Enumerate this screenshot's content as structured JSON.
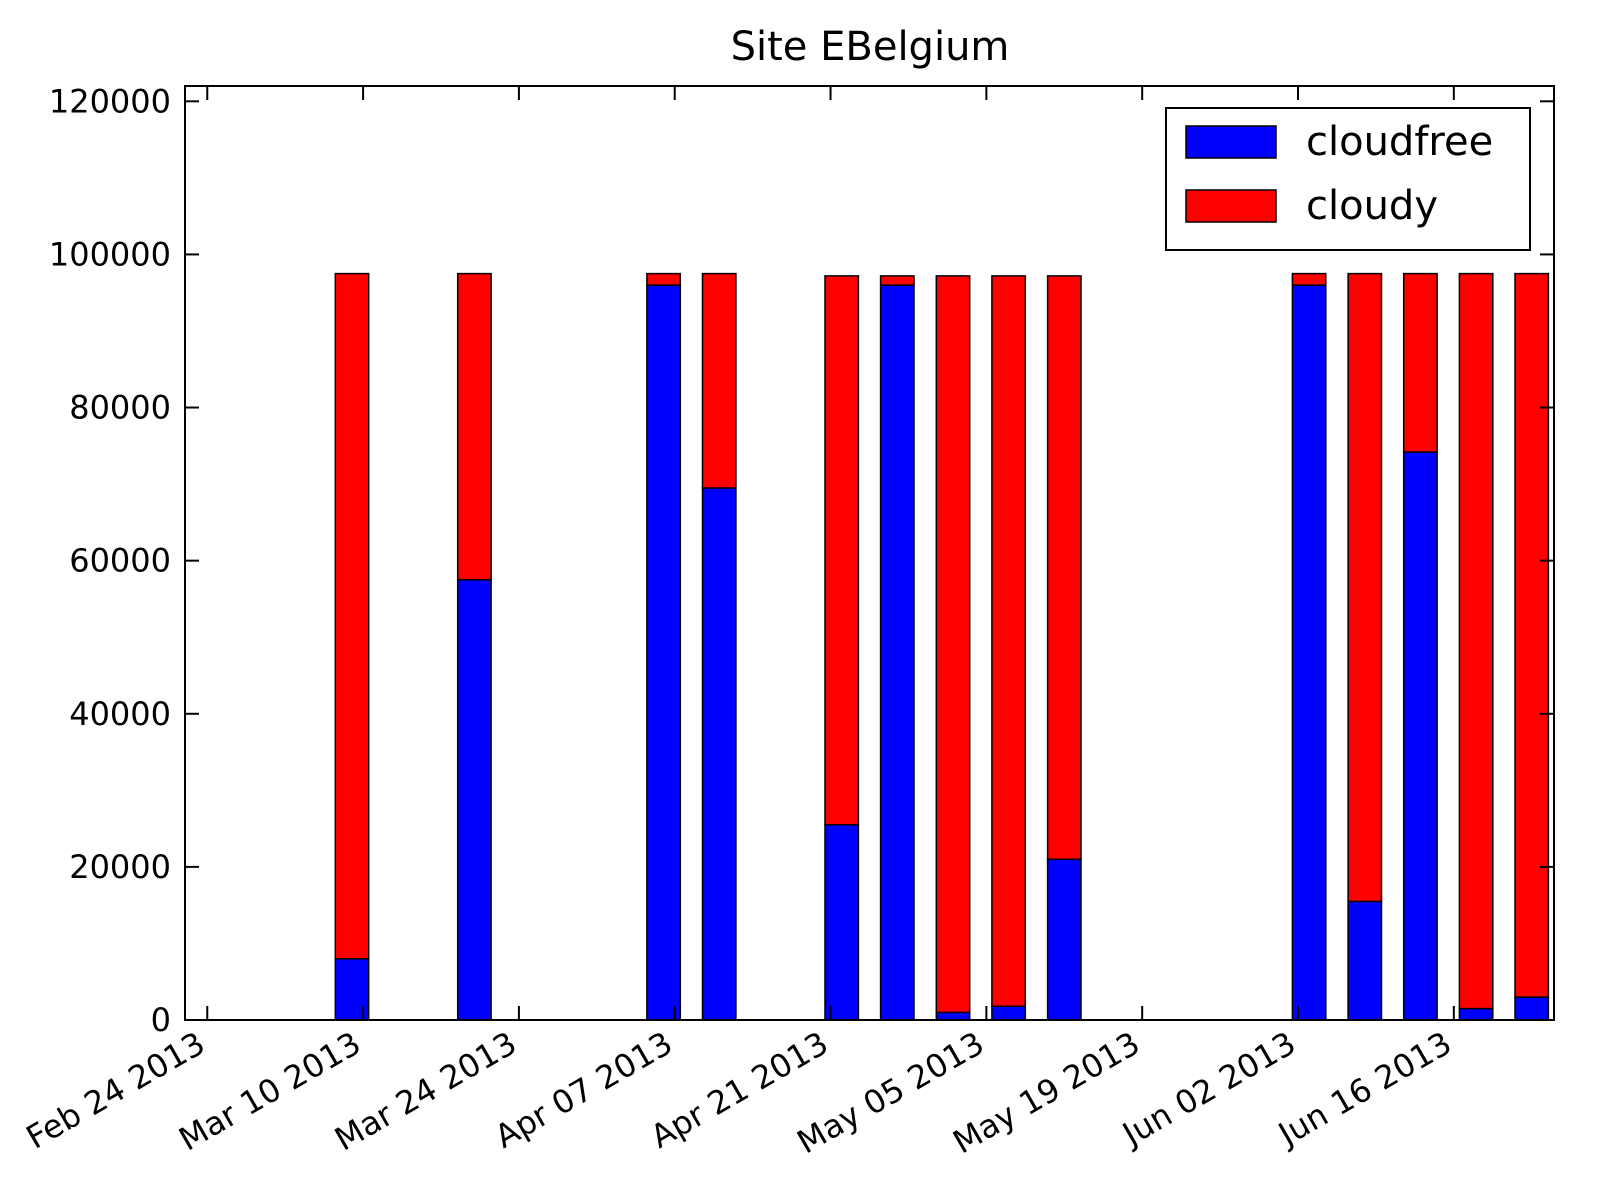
{
  "chart_data": {
    "type": "bar",
    "stacked": true,
    "title": "Site EBelgium",
    "xlabel": "",
    "ylabel": "",
    "ylim": [
      0,
      122000
    ],
    "xlim": [
      "2013-02-22",
      "2013-06-25"
    ],
    "x_ticks": [
      "2013-02-24",
      "2013-03-10",
      "2013-03-24",
      "2013-04-07",
      "2013-04-21",
      "2013-05-05",
      "2013-05-19",
      "2013-06-02",
      "2013-06-16"
    ],
    "x_tick_labels": [
      "Feb 24 2013",
      "Mar 10 2013",
      "Mar 24 2013",
      "Apr 07 2013",
      "Apr 21 2013",
      "May 05 2013",
      "May 19 2013",
      "Jun 02 2013",
      "Jun 16 2013"
    ],
    "y_ticks": [
      0,
      20000,
      40000,
      60000,
      80000,
      100000,
      120000
    ],
    "y_tick_labels": [
      "0",
      "20000",
      "40000",
      "60000",
      "80000",
      "100000",
      "120000"
    ],
    "legend_position": "top-right",
    "grid": false,
    "x": [
      "2013-03-09",
      "2013-03-20",
      "2013-04-06",
      "2013-04-11",
      "2013-04-22",
      "2013-04-27",
      "2013-05-02",
      "2013-05-07",
      "2013-05-12",
      "2013-06-03",
      "2013-06-08",
      "2013-06-13",
      "2013-06-18",
      "2013-06-23"
    ],
    "series": [
      {
        "name": "cloudfree",
        "color": "#0000ff",
        "values": [
          8000,
          57500,
          96000,
          69500,
          25500,
          96000,
          1000,
          1800,
          21000,
          96000,
          15500,
          74200,
          1500,
          3000
        ]
      },
      {
        "name": "cloudy",
        "color": "#ff0000",
        "values": [
          89500,
          40000,
          1500,
          28000,
          71700,
          1200,
          96200,
          95400,
          76200,
          1500,
          82000,
          23300,
          96000,
          94500
        ]
      }
    ]
  }
}
